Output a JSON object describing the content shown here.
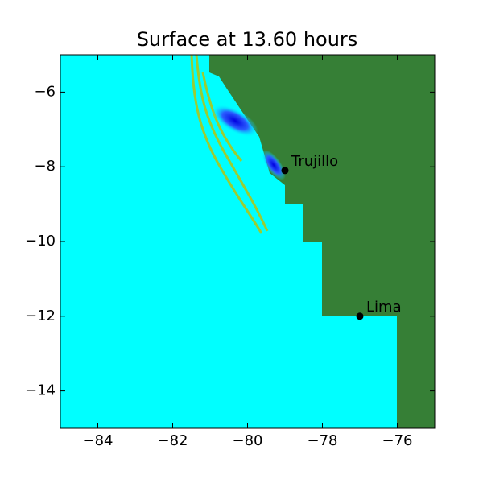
{
  "chart_data": {
    "type": "map",
    "title": "Surface at 13.60 hours",
    "xlim": [
      -85,
      -75
    ],
    "ylim": [
      -15,
      -5
    ],
    "xticks": [
      {
        "value": -84,
        "label": "−84"
      },
      {
        "value": -82,
        "label": "−82"
      },
      {
        "value": -80,
        "label": "−80"
      },
      {
        "value": -78,
        "label": "−78"
      },
      {
        "value": -76,
        "label": "−76"
      }
    ],
    "yticks": [
      {
        "value": -14,
        "label": "−14"
      },
      {
        "value": -12,
        "label": "−12"
      },
      {
        "value": -10,
        "label": "−10"
      },
      {
        "value": -8,
        "label": "−8"
      },
      {
        "value": -6,
        "label": "−6"
      }
    ],
    "points": [
      {
        "name": "Trujillo",
        "x": -79.0,
        "y": -8.1
      },
      {
        "name": "Lima",
        "x": -77.0,
        "y": -12.0
      }
    ],
    "point_color": "#000000"
  }
}
